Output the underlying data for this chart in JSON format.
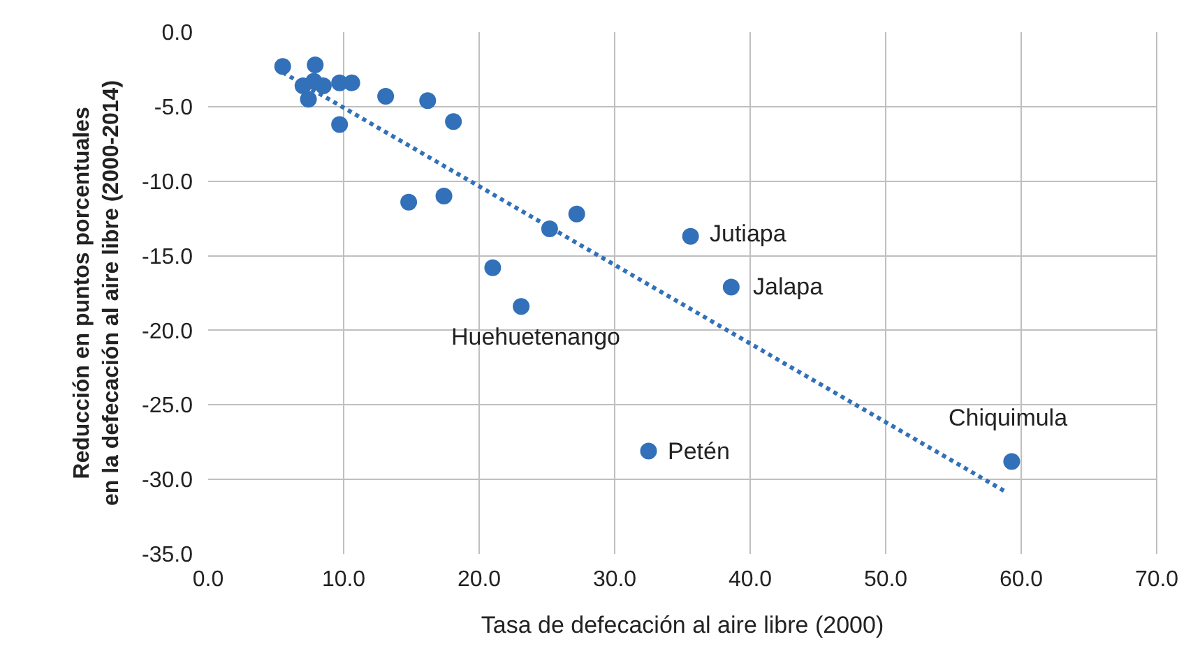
{
  "chart_data": {
    "type": "scatter",
    "xlabel": "Tasa de defecación al aire libre (2000)",
    "ylabel": "Reducción en puntos porcentuales\nen la defecación al aire libre (2000-2014)",
    "series": [
      {
        "color": "#3270b9",
        "marker": "circle",
        "x": [
          5.5,
          7.9,
          7.0,
          7.8,
          8.5,
          7.4,
          9.7,
          10.6,
          9.7,
          13.1,
          16.2,
          18.1,
          14.8,
          17.4,
          21.0,
          23.1,
          25.2,
          27.2,
          35.6,
          38.6,
          32.5,
          59.3
        ],
        "values": [
          -2.3,
          -2.2,
          -3.6,
          -3.3,
          -3.6,
          -4.5,
          -3.4,
          -3.4,
          -6.2,
          -4.3,
          -4.6,
          -6.0,
          -11.4,
          -11.0,
          -15.8,
          -18.4,
          -13.2,
          -12.2,
          -13.7,
          -17.1,
          -28.1,
          -28.8
        ]
      },
      {
        "type": "line",
        "color": "#3270b9",
        "line_style": "dotted",
        "x": [
          5.5,
          58.8
        ],
        "values": [
          -2.7,
          -30.8
        ]
      }
    ],
    "annotations": [
      {
        "text": "Jutiapa",
        "x": 35.6,
        "y": -13.7
      },
      {
        "text": "Jalapa",
        "x": 38.6,
        "y": -17.1
      },
      {
        "text": "Huehuetenango",
        "x": 23.1,
        "y": -18.4
      },
      {
        "text": "Petén",
        "x": 32.5,
        "y": -28.1
      },
      {
        "text": "Chiquimula",
        "x": 59.3,
        "y": -28.8
      }
    ],
    "xlim": [
      0,
      70
    ],
    "ylim": [
      -35,
      0
    ],
    "xticks": [
      {
        "value": 0,
        "label": "0.0"
      },
      {
        "value": 10,
        "label": "10.0"
      },
      {
        "value": 20,
        "label": "20.0"
      },
      {
        "value": 30,
        "label": "30.0"
      },
      {
        "value": 40,
        "label": "40.0"
      },
      {
        "value": 50,
        "label": "50.0"
      },
      {
        "value": 60,
        "label": "60.0"
      },
      {
        "value": 70,
        "label": "70.0"
      }
    ],
    "yticks": [
      {
        "value": 0,
        "label": "0.0"
      },
      {
        "value": -5,
        "label": "-5.0"
      },
      {
        "value": -10,
        "label": "-10.0"
      },
      {
        "value": -15,
        "label": "-15.0"
      },
      {
        "value": -20,
        "label": "-20.0"
      },
      {
        "value": -25,
        "label": "-25.0"
      },
      {
        "value": -30,
        "label": "-30.0"
      },
      {
        "value": -35,
        "label": "-35.0"
      }
    ],
    "grid": true
  }
}
